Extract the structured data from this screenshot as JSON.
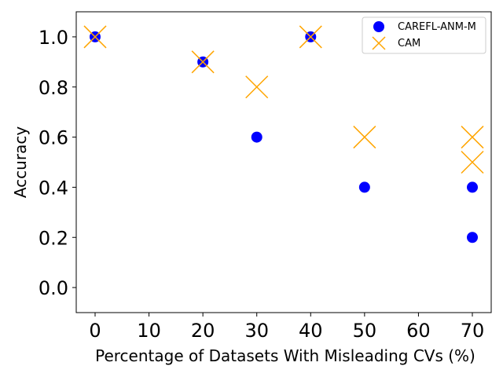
{
  "chart_data": {
    "type": "scatter",
    "title": "",
    "xlabel": "Percentage of Datasets With Misleading CVs (%)",
    "ylabel": "Accuracy",
    "xlim": [
      -3.5,
      73.5
    ],
    "ylim": [
      -0.1,
      1.1
    ],
    "xticks": [
      0,
      10,
      20,
      30,
      40,
      50,
      60,
      70
    ],
    "xtick_labels": [
      "0",
      "10",
      "20",
      "30",
      "40",
      "50",
      "60",
      "70"
    ],
    "yticks": [
      0.0,
      0.2,
      0.4,
      0.6,
      0.8,
      1.0
    ],
    "ytick_labels": [
      "0.0",
      "0.2",
      "0.4",
      "0.6",
      "0.8",
      "1.0"
    ],
    "grid": false,
    "legend_position": "top-right",
    "series": [
      {
        "name": "CAREFL-ANM-M",
        "marker": "circle",
        "color": "#0000ff",
        "x": [
          0,
          20,
          30,
          40,
          50,
          70,
          70
        ],
        "y": [
          1.0,
          0.9,
          0.6,
          1.0,
          0.4,
          0.4,
          0.2
        ]
      },
      {
        "name": "CAM",
        "marker": "x",
        "color": "#ffa500",
        "x": [
          0,
          20,
          30,
          40,
          50,
          70,
          70
        ],
        "y": [
          1.0,
          0.9,
          0.8,
          1.0,
          0.6,
          0.6,
          0.5
        ]
      }
    ]
  }
}
